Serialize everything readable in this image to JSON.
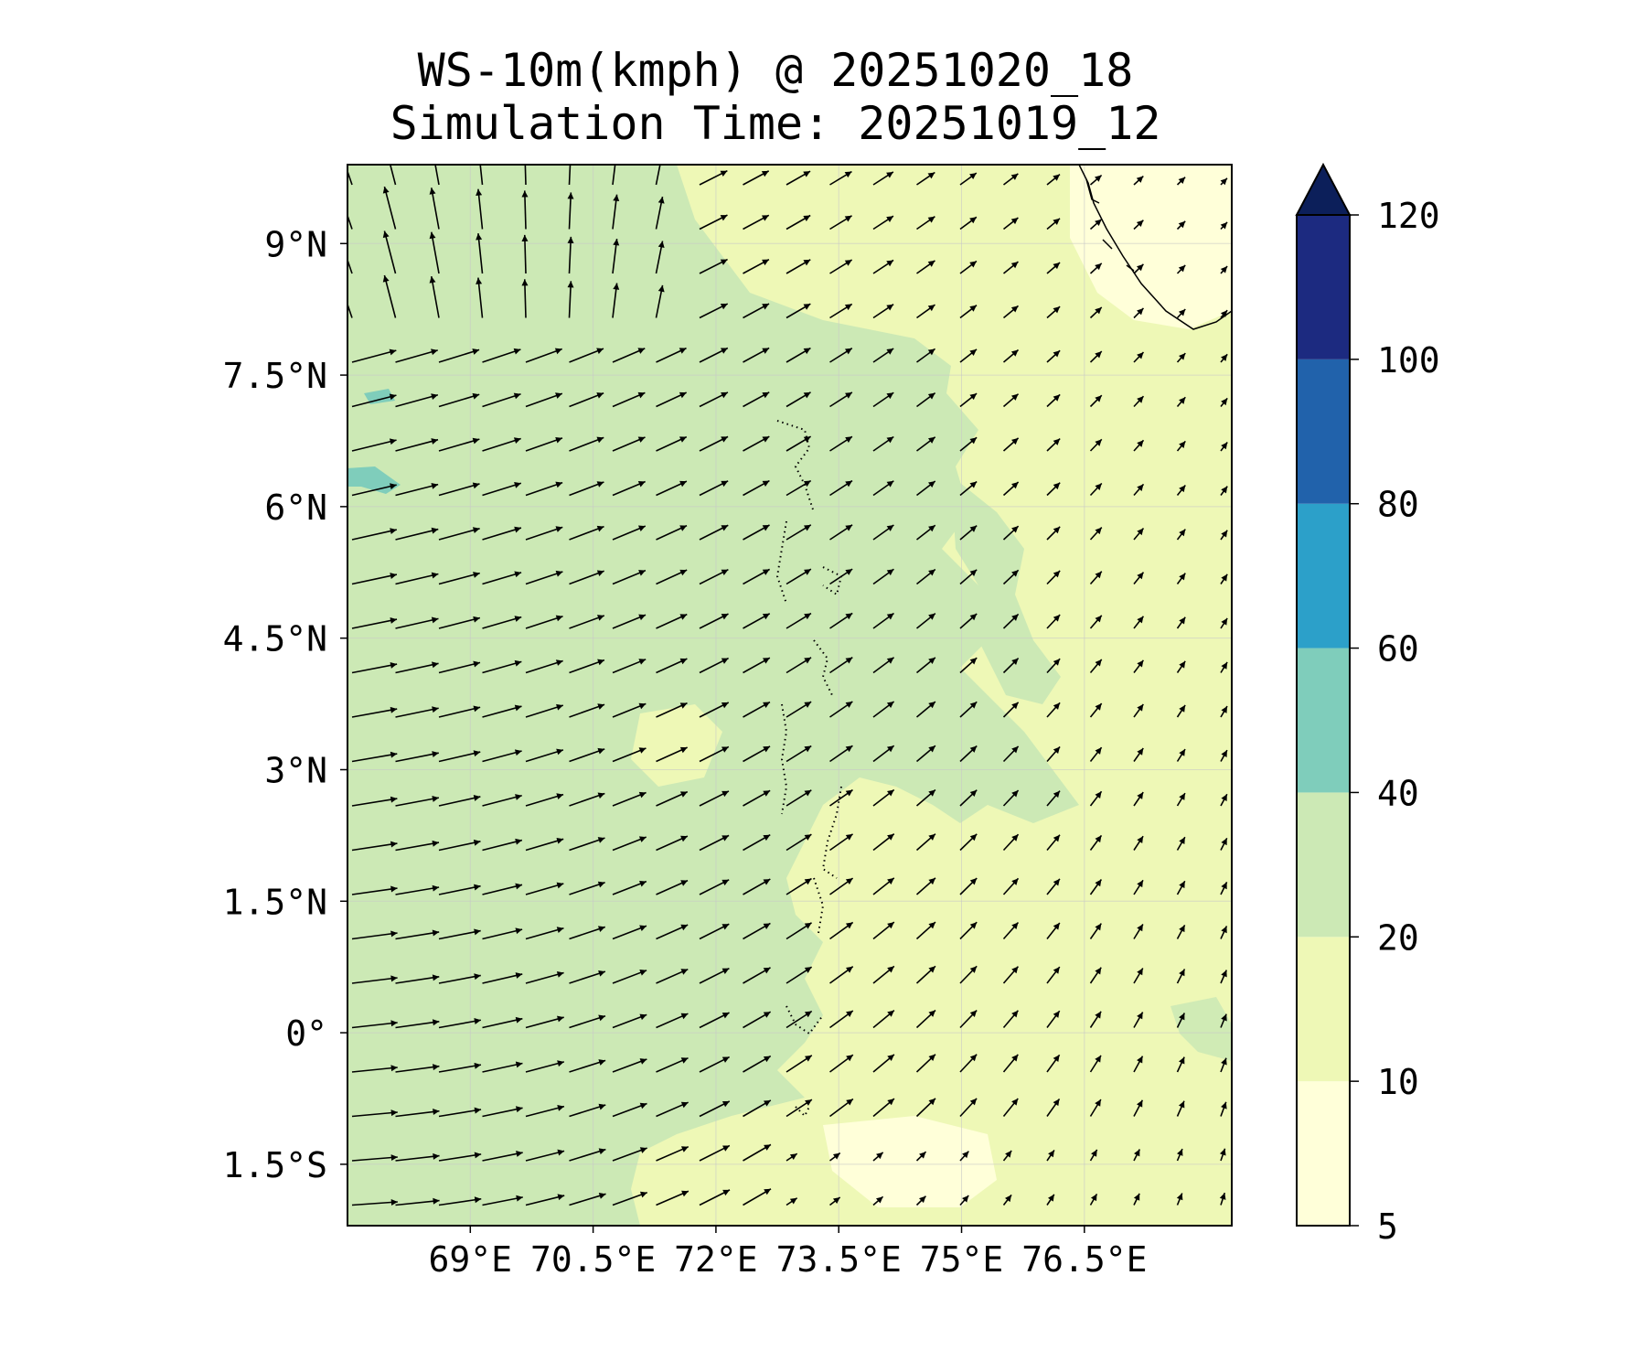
{
  "title": {
    "line1": "WS-10m(kmph) @ 20251020_18",
    "line2": "Simulation Time: 20251019_12"
  },
  "map": {
    "variable": "10 m wind speed (km/h) with wind vectors",
    "lon_range": [
      67.5,
      78.3
    ],
    "lat_range": [
      -2.2,
      9.9
    ],
    "x_ticks": [
      {
        "value": 69,
        "label": "69°E"
      },
      {
        "value": 70.5,
        "label": "70.5°E"
      },
      {
        "value": 72,
        "label": "72°E"
      },
      {
        "value": 73.5,
        "label": "73.5°E"
      },
      {
        "value": 75,
        "label": "75°E"
      },
      {
        "value": 76.5,
        "label": "76.5°E"
      }
    ],
    "y_ticks": [
      {
        "value": 9,
        "label": "9°N"
      },
      {
        "value": 7.5,
        "label": "7.5°N"
      },
      {
        "value": 6,
        "label": "6°N"
      },
      {
        "value": 4.5,
        "label": "4.5°N"
      },
      {
        "value": 3,
        "label": "3°N"
      },
      {
        "value": 1.5,
        "label": "1.5°N"
      },
      {
        "value": 0,
        "label": "0°"
      },
      {
        "value": -1.5,
        "label": "1.5°S"
      }
    ],
    "grid": true
  },
  "colorbar": {
    "levels": [
      5,
      10,
      20,
      40,
      60,
      80,
      100,
      120
    ],
    "labels": [
      "5",
      "10",
      "20",
      "40",
      "60",
      "80",
      "100",
      "120"
    ],
    "colors": [
      "#ffffd9",
      "#eef8b6",
      "#cce9b5",
      "#7fcdbb",
      "#2ca0c9",
      "#2162ab",
      "#1c2a80"
    ],
    "extend_color": "#0c1f5a",
    "extend": "max"
  }
}
